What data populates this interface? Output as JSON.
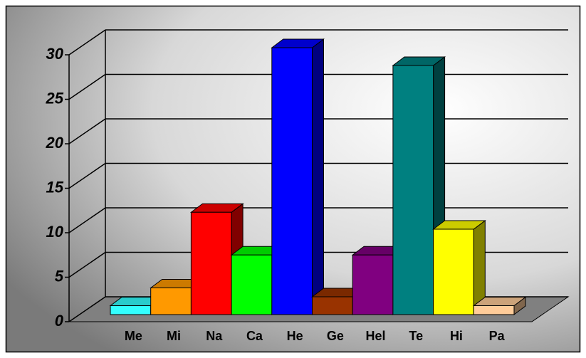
{
  "chart_data": {
    "type": "bar",
    "categories": [
      "Me",
      "Mi",
      "Na",
      "Ca",
      "He",
      "Ge",
      "Hel",
      "Te",
      "Hi",
      "Pa"
    ],
    "series": [
      {
        "values": [
          1,
          3,
          11.5,
          6.7,
          30,
          2,
          6.7,
          28,
          9.6,
          1
        ],
        "colors": [
          "#33ffff",
          "#ff9900",
          "#ff0000",
          "#00ff00",
          "#0000ff",
          "#993300",
          "#800080",
          "#008080",
          "#ffff00",
          "#ffcc99"
        ]
      }
    ],
    "ylim": [
      0,
      30
    ],
    "yticks": [
      0,
      5,
      10,
      15,
      20,
      25,
      30
    ],
    "grid": true
  }
}
